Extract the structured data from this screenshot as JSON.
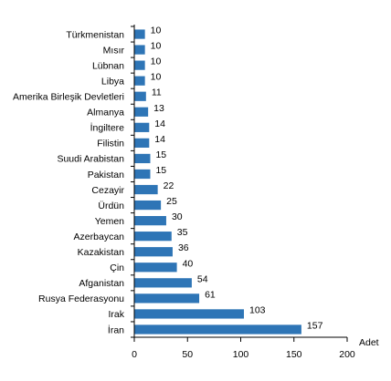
{
  "chart_data": {
    "type": "bar",
    "orientation": "horizontal",
    "categories": [
      "Türkmenistan",
      "Mısır",
      "Lübnan",
      "Libya",
      "Amerika Birleşik Devletleri",
      "Almanya",
      "İngiltere",
      "Filistin",
      "Suudi Arabistan",
      "Pakistan",
      "Cezayir",
      "Ürdün",
      "Yemen",
      "Azerbaycan",
      "Kazakistan",
      "Çin",
      "Afganistan",
      "Rusya Federasyonu",
      "Irak",
      "İran"
    ],
    "values": [
      10,
      10,
      10,
      10,
      11,
      13,
      14,
      14,
      15,
      15,
      22,
      25,
      30,
      35,
      36,
      40,
      54,
      61,
      103,
      157
    ],
    "xlim": [
      0,
      200
    ],
    "xticks": [
      0,
      50,
      100,
      150,
      200
    ],
    "x_unit": "Adet",
    "bar_color": "#2E75B6",
    "grid": false,
    "legend": "none"
  }
}
